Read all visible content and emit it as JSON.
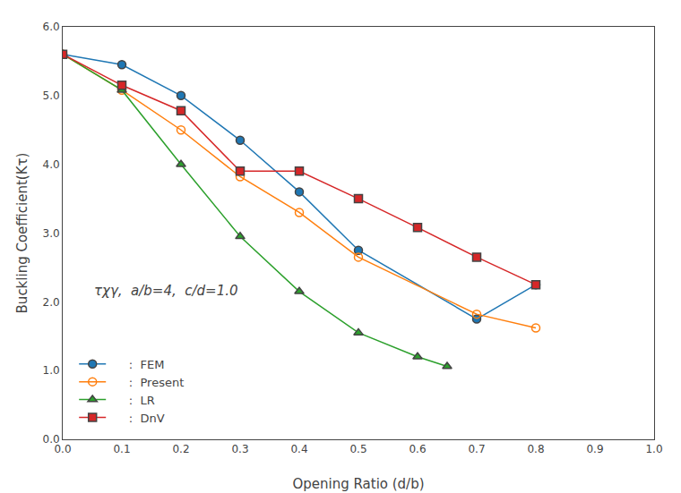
{
  "chart_data": {
    "type": "line",
    "xlabel": "Opening Ratio (d/b)",
    "ylabel": "Buckling Coefficient(Kτ)",
    "annotation": "τχγ,  a/b=4,  c/d=1.0",
    "xlim": [
      0.0,
      1.0
    ],
    "ylim": [
      0.0,
      6.0
    ],
    "xticks": [
      {
        "value": 0.0,
        "label": "0.0"
      },
      0.1,
      0.2,
      0.3,
      0.4,
      0.5,
      0.6,
      0.7,
      0.8,
      0.9,
      {
        "value": 1.0,
        "label": "1.0"
      }
    ],
    "yticks": [
      {
        "value": 0.0,
        "label": "0.0"
      },
      {
        "value": 1.0,
        "label": "1.0"
      },
      {
        "value": 2.0,
        "label": "2.0"
      },
      {
        "value": 3.0,
        "label": "3.0"
      },
      {
        "value": 4.0,
        "label": "4.0"
      },
      {
        "value": 5.0,
        "label": "5.0"
      },
      {
        "value": 6.0,
        "label": "6.0"
      }
    ],
    "grid": false,
    "legend": "lower left",
    "series": [
      {
        "name": "     :  FEM",
        "marker": "circle",
        "line_style": "solid",
        "x": [
          0.0,
          0.1,
          0.2,
          0.3,
          0.4,
          0.5,
          0.7,
          0.8
        ],
        "values": [
          5.6,
          5.45,
          5.0,
          4.35,
          3.6,
          2.75,
          1.75,
          2.25
        ]
      },
      {
        "name": "     :  Present",
        "marker": "circle-open",
        "line_style": "solid",
        "x": [
          0.0,
          0.1,
          0.2,
          0.3,
          0.4,
          0.5,
          0.7,
          0.8
        ],
        "values": [
          5.6,
          5.08,
          4.5,
          3.82,
          3.3,
          2.65,
          1.82,
          1.62
        ]
      },
      {
        "name": "     :  LR",
        "marker": "triangle-up",
        "line_style": "solid",
        "x": [
          0.0,
          0.1,
          0.2,
          0.3,
          0.4,
          0.5,
          0.6,
          0.65
        ],
        "values": [
          5.6,
          5.08,
          4.0,
          2.95,
          2.15,
          1.55,
          1.2,
          1.06
        ]
      },
      {
        "name": "     :  DnV",
        "marker": "square",
        "line_style": "solid",
        "x": [
          0.0,
          0.1,
          0.2,
          0.3,
          0.4,
          0.5,
          0.6,
          0.7,
          0.8
        ],
        "values": [
          5.6,
          5.15,
          4.78,
          3.9,
          3.9,
          3.5,
          3.08,
          2.65,
          2.25
        ]
      }
    ]
  }
}
